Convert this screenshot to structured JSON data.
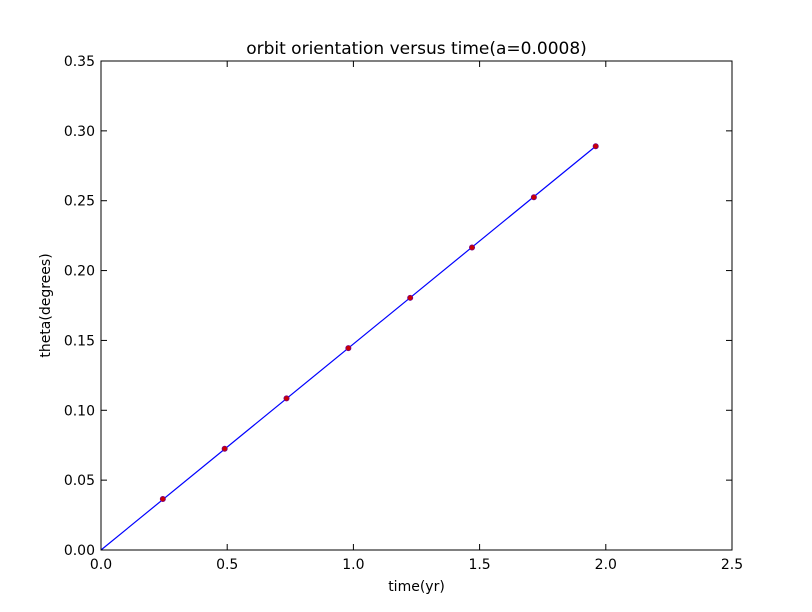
{
  "chart_data": {
    "type": "line",
    "title": "orbit orientation versus time(a=0.0008)",
    "xlabel": "time(yr)",
    "ylabel": "theta(degrees)",
    "xlim": [
      0.0,
      2.5
    ],
    "ylim": [
      0.0,
      0.35
    ],
    "xticks": [
      "0.0",
      "0.5",
      "1.0",
      "1.5",
      "2.0",
      "2.5"
    ],
    "yticks": [
      "0.00",
      "0.05",
      "0.10",
      "0.15",
      "0.20",
      "0.25",
      "0.30",
      "0.35"
    ],
    "grid": false,
    "series": [
      {
        "style": "line",
        "color": "#0000ff",
        "x": [
          0.0,
          1.96
        ],
        "y": [
          0.0,
          0.289
        ]
      },
      {
        "style": "scatter",
        "color": "#cc0000",
        "x": [
          0.245,
          0.49,
          0.735,
          0.98,
          1.225,
          1.47,
          1.715,
          1.96
        ],
        "y": [
          0.0365,
          0.0725,
          0.1085,
          0.1445,
          0.1805,
          0.2165,
          0.2525,
          0.289
        ]
      }
    ]
  }
}
